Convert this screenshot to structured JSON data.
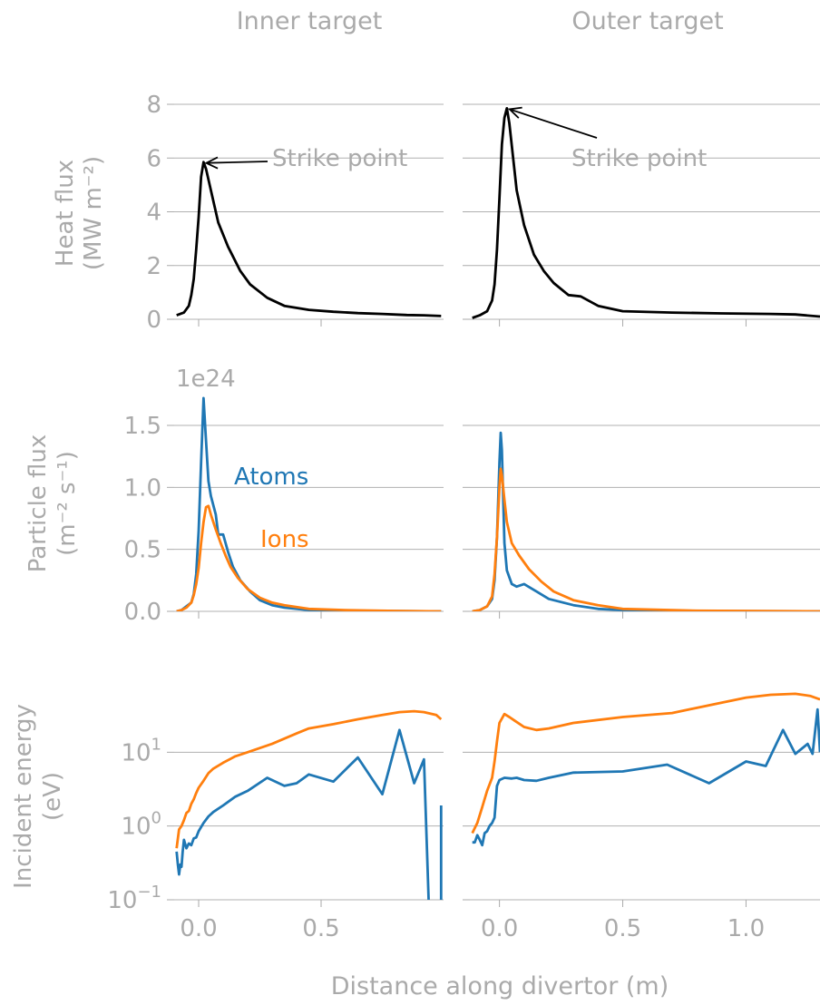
{
  "figure": {
    "xlabel": "Distance along divertor (m)",
    "col_titles": [
      "Inner target",
      "Outer target"
    ],
    "row_labels": [
      [
        "Heat flux",
        "(MW m⁻²)"
      ],
      [
        "Particle flux",
        "(m⁻² s⁻¹)"
      ],
      [
        "Incident energy",
        "(eV)"
      ]
    ],
    "particle_offset": "1e24",
    "colors": {
      "heat": "#000000",
      "atoms": "#1f77b4",
      "ions": "#ff7f0e",
      "text": "#aaaaaa",
      "grid": "#b0b0b0"
    }
  },
  "chart_data": [
    {
      "type": "line",
      "panel": "inner-heat",
      "title": "Inner target",
      "xlim": [
        -0.1,
        1.0
      ],
      "ylim": [
        0,
        8
      ],
      "yticks": [
        0,
        2,
        4,
        6,
        8
      ],
      "xticks": [
        0.0,
        0.5
      ],
      "annotation": {
        "text": "Strike point",
        "point": [
          0.02,
          5.85
        ]
      },
      "series": [
        {
          "key": "heat",
          "x": [
            -0.09,
            -0.06,
            -0.04,
            -0.03,
            -0.02,
            -0.01,
            0.0,
            0.01,
            0.02,
            0.03,
            0.05,
            0.08,
            0.12,
            0.17,
            0.21,
            0.28,
            0.35,
            0.45,
            0.55,
            0.65,
            0.75,
            0.85,
            0.92,
            0.99
          ],
          "y": [
            0.15,
            0.25,
            0.5,
            0.9,
            1.5,
            2.6,
            3.8,
            5.3,
            5.85,
            5.6,
            4.8,
            3.6,
            2.7,
            1.8,
            1.3,
            0.8,
            0.5,
            0.35,
            0.28,
            0.23,
            0.2,
            0.16,
            0.15,
            0.12
          ]
        }
      ]
    },
    {
      "type": "line",
      "panel": "outer-heat",
      "title": "Outer target",
      "xlim": [
        -0.12,
        1.3
      ],
      "ylim": [
        0,
        8
      ],
      "yticks": [
        0,
        2,
        4,
        6,
        8
      ],
      "xticks": [
        0.0,
        0.5,
        1.0
      ],
      "annotation": {
        "text": "Strike point",
        "point": [
          0.03,
          7.85
        ]
      },
      "series": [
        {
          "key": "heat",
          "x": [
            -0.11,
            -0.08,
            -0.05,
            -0.03,
            -0.02,
            -0.01,
            0.0,
            0.01,
            0.02,
            0.03,
            0.04,
            0.07,
            0.1,
            0.14,
            0.18,
            0.22,
            0.28,
            0.33,
            0.4,
            0.5,
            0.7,
            0.9,
            1.1,
            1.2,
            1.3
          ],
          "y": [
            0.05,
            0.15,
            0.3,
            0.7,
            1.3,
            2.6,
            4.5,
            6.5,
            7.5,
            7.85,
            7.3,
            4.8,
            3.5,
            2.4,
            1.8,
            1.35,
            0.9,
            0.85,
            0.5,
            0.3,
            0.25,
            0.22,
            0.2,
            0.18,
            0.1
          ]
        }
      ]
    },
    {
      "type": "line",
      "panel": "inner-particle",
      "xlim": [
        -0.1,
        1.0
      ],
      "ylim": [
        0,
        1.8
      ],
      "yticks": [
        0.0,
        0.5,
        1.0,
        1.5
      ],
      "xticks": [
        0.0,
        0.5
      ],
      "series": [
        {
          "key": "atoms",
          "name": "Atoms",
          "x": [
            -0.09,
            -0.07,
            -0.05,
            -0.03,
            -0.02,
            -0.01,
            0.0,
            0.01,
            0.02,
            0.03,
            0.04,
            0.05,
            0.07,
            0.08,
            0.1,
            0.12,
            0.14,
            0.17,
            0.21,
            0.25,
            0.3,
            0.35,
            0.45,
            0.6,
            0.8,
            0.99
          ],
          "y": [
            0.0,
            0.01,
            0.04,
            0.07,
            0.14,
            0.3,
            0.65,
            1.2,
            1.72,
            1.38,
            1.05,
            0.93,
            0.78,
            0.62,
            0.62,
            0.48,
            0.36,
            0.25,
            0.16,
            0.09,
            0.05,
            0.03,
            0.01,
            0.005,
            0.002,
            0.0
          ]
        },
        {
          "key": "ions",
          "name": "Ions",
          "x": [
            -0.09,
            -0.07,
            -0.05,
            -0.03,
            -0.02,
            -0.01,
            0.0,
            0.01,
            0.02,
            0.03,
            0.04,
            0.05,
            0.07,
            0.09,
            0.11,
            0.13,
            0.16,
            0.2,
            0.25,
            0.3,
            0.35,
            0.45,
            0.6,
            0.8,
            0.99
          ],
          "y": [
            0.0,
            0.01,
            0.03,
            0.07,
            0.13,
            0.22,
            0.35,
            0.55,
            0.72,
            0.84,
            0.85,
            0.78,
            0.66,
            0.55,
            0.45,
            0.36,
            0.27,
            0.18,
            0.11,
            0.07,
            0.05,
            0.02,
            0.01,
            0.004,
            0.0
          ]
        }
      ],
      "labels": [
        {
          "text": "Atoms",
          "series": "atoms"
        },
        {
          "text": "Ions",
          "series": "ions"
        }
      ]
    },
    {
      "type": "line",
      "panel": "outer-particle",
      "xlim": [
        -0.12,
        1.3
      ],
      "ylim": [
        0,
        1.8
      ],
      "yticks": [
        0.0,
        0.5,
        1.0,
        1.5
      ],
      "xticks": [
        0.0,
        0.5,
        1.0
      ],
      "series": [
        {
          "key": "atoms",
          "name": "Atoms",
          "x": [
            -0.11,
            -0.08,
            -0.05,
            -0.03,
            -0.02,
            -0.01,
            0.0,
            0.005,
            0.01,
            0.02,
            0.03,
            0.05,
            0.07,
            0.1,
            0.15,
            0.2,
            0.3,
            0.4,
            0.5,
            0.8,
            1.3
          ],
          "y": [
            0.0,
            0.01,
            0.04,
            0.1,
            0.25,
            0.6,
            1.2,
            1.44,
            1.3,
            0.55,
            0.33,
            0.22,
            0.2,
            0.22,
            0.16,
            0.1,
            0.05,
            0.02,
            0.01,
            0.003,
            0.0
          ]
        },
        {
          "key": "ions",
          "name": "Ions",
          "x": [
            -0.11,
            -0.08,
            -0.05,
            -0.03,
            -0.02,
            -0.01,
            0.0,
            0.005,
            0.01,
            0.02,
            0.03,
            0.05,
            0.08,
            0.12,
            0.17,
            0.22,
            0.3,
            0.4,
            0.5,
            0.8,
            1.3
          ],
          "y": [
            0.0,
            0.01,
            0.04,
            0.12,
            0.3,
            0.6,
            1.0,
            1.15,
            1.1,
            0.9,
            0.72,
            0.55,
            0.45,
            0.34,
            0.24,
            0.16,
            0.09,
            0.05,
            0.02,
            0.005,
            0.0
          ]
        }
      ]
    },
    {
      "type": "line",
      "panel": "inner-energy",
      "yscale": "log",
      "xlim": [
        -0.1,
        1.0
      ],
      "ylim": [
        0.1,
        100
      ],
      "yticks": [
        0.1,
        1,
        10
      ],
      "xticks": [
        0.0,
        0.5
      ],
      "ytick_labels": [
        [
          "10",
          "−1"
        ],
        [
          "10",
          "0"
        ],
        [
          "10",
          "1"
        ]
      ],
      "series": [
        {
          "key": "atoms",
          "name": "Atoms",
          "x": [
            -0.09,
            -0.085,
            -0.08,
            -0.075,
            -0.07,
            -0.065,
            -0.06,
            -0.05,
            -0.04,
            -0.03,
            -0.02,
            -0.01,
            0.0,
            0.02,
            0.04,
            0.06,
            0.1,
            0.15,
            0.2,
            0.28,
            0.35,
            0.4,
            0.45,
            0.55,
            0.65,
            0.75,
            0.82,
            0.88,
            0.92,
            0.94
          ],
          "y": [
            0.45,
            0.3,
            0.22,
            0.3,
            0.28,
            0.45,
            0.65,
            0.5,
            0.58,
            0.55,
            0.68,
            0.7,
            0.85,
            1.1,
            1.35,
            1.55,
            1.9,
            2.5,
            3.0,
            4.5,
            3.5,
            3.8,
            5.0,
            4.0,
            8.5,
            2.7,
            20.0,
            3.8,
            8.0,
            0.08
          ]
        },
        {
          "key": "ions",
          "name": "Ions",
          "x": [
            -0.09,
            -0.08,
            -0.07,
            -0.06,
            -0.05,
            -0.04,
            -0.03,
            -0.02,
            -0.01,
            0.0,
            0.02,
            0.04,
            0.06,
            0.1,
            0.15,
            0.2,
            0.3,
            0.4,
            0.45,
            0.55,
            0.65,
            0.75,
            0.82,
            0.88,
            0.92,
            0.97,
            0.99
          ],
          "y": [
            0.5,
            0.9,
            1.0,
            1.2,
            1.5,
            1.6,
            2.0,
            2.3,
            2.8,
            3.3,
            4.1,
            5.2,
            6.0,
            7.2,
            8.8,
            10.0,
            13.0,
            18.0,
            21.0,
            24.0,
            28.0,
            32.0,
            35.0,
            36.0,
            35.0,
            32.0,
            28.0
          ]
        }
      ]
    },
    {
      "type": "line",
      "panel": "outer-energy",
      "yscale": "log",
      "xlim": [
        -0.12,
        1.3
      ],
      "ylim": [
        0.1,
        100
      ],
      "yticks": [
        0.1,
        1,
        10
      ],
      "xticks": [
        0.0,
        0.5,
        1.0
      ],
      "ytick_labels": [
        [
          "10",
          "−1"
        ],
        [
          "10",
          "0"
        ],
        [
          "10",
          "1"
        ]
      ],
      "series": [
        {
          "key": "atoms",
          "name": "Atoms",
          "x": [
            -0.11,
            -0.1,
            -0.09,
            -0.08,
            -0.07,
            -0.06,
            -0.05,
            -0.04,
            -0.03,
            -0.02,
            -0.01,
            0.0,
            0.02,
            0.05,
            0.07,
            0.1,
            0.15,
            0.2,
            0.3,
            0.5,
            0.68,
            0.85,
            1.0,
            1.08,
            1.15,
            1.2,
            1.25,
            1.27,
            1.29,
            1.3
          ],
          "y": [
            0.6,
            0.6,
            0.75,
            0.65,
            0.55,
            0.8,
            0.85,
            1.0,
            1.1,
            1.3,
            3.5,
            4.2,
            4.5,
            4.4,
            4.5,
            4.2,
            4.1,
            4.5,
            5.3,
            5.5,
            6.8,
            3.8,
            7.5,
            6.5,
            20.0,
            9.5,
            13.0,
            9.5,
            38.0,
            10.0
          ]
        },
        {
          "key": "ions",
          "name": "Ions",
          "x": [
            -0.11,
            -0.09,
            -0.07,
            -0.05,
            -0.03,
            -0.02,
            -0.01,
            0.0,
            0.02,
            0.04,
            0.06,
            0.1,
            0.15,
            0.2,
            0.3,
            0.5,
            0.7,
            0.9,
            1.0,
            1.1,
            1.2,
            1.26,
            1.3
          ],
          "y": [
            0.8,
            1.1,
            1.8,
            3.0,
            4.5,
            7.5,
            14.0,
            25.0,
            33.0,
            30.0,
            27.0,
            22.0,
            20.0,
            21.0,
            25.0,
            30.0,
            34.0,
            47.0,
            55.0,
            60.0,
            62.0,
            58.0,
            52.0
          ]
        }
      ]
    }
  ]
}
